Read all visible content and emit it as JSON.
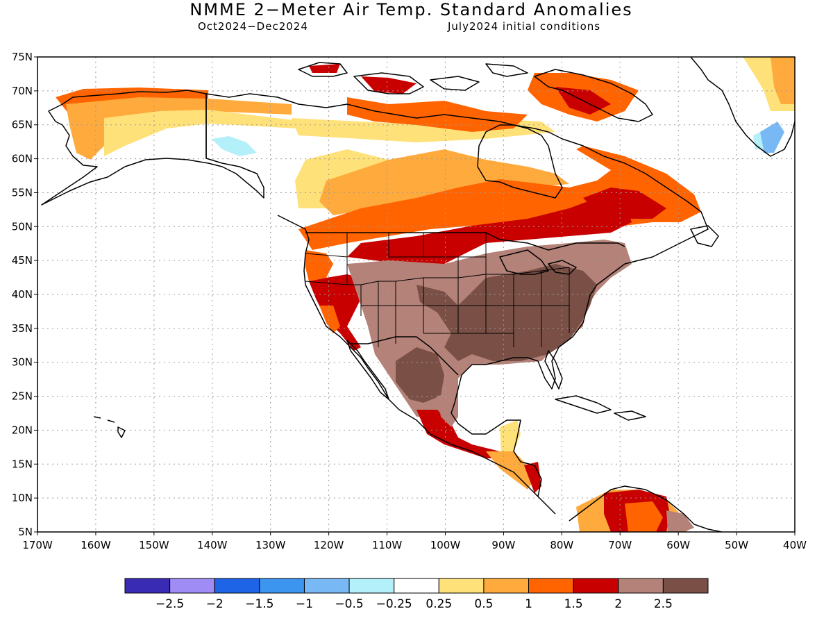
{
  "title": "NMME 2−Meter Air Temp. Standard Anomalies",
  "subtitle_left": "Oct2024−Dec2024",
  "subtitle_right": "July2024 initial conditions",
  "lat_labels": [
    "75N",
    "70N",
    "65N",
    "60N",
    "55N",
    "50N",
    "45N",
    "40N",
    "35N",
    "30N",
    "25N",
    "20N",
    "15N",
    "10N",
    "5N"
  ],
  "lon_labels": [
    "170W",
    "160W",
    "150W",
    "140W",
    "130W",
    "120W",
    "110W",
    "100W",
    "90W",
    "80W",
    "70W",
    "60W",
    "50W",
    "40W"
  ],
  "colorbar": {
    "colors": [
      "#3a2bb4",
      "#a08cf5",
      "#1e64e6",
      "#3c96f0",
      "#78b9f5",
      "#b4f0fa",
      "#ffffff",
      "#ffe17a",
      "#ffaa3c",
      "#ff6400",
      "#c80000",
      "#b48278",
      "#7a5046"
    ],
    "labels": [
      "−2.5",
      "−2",
      "−1.5",
      "−1",
      "−0.5",
      "−0.25",
      "0.25",
      "0.5",
      "1",
      "1.5",
      "2",
      "2.5"
    ]
  },
  "colors": {
    "frame": "#000000",
    "grid": "#9a9a9a",
    "coast": "#000000"
  }
}
